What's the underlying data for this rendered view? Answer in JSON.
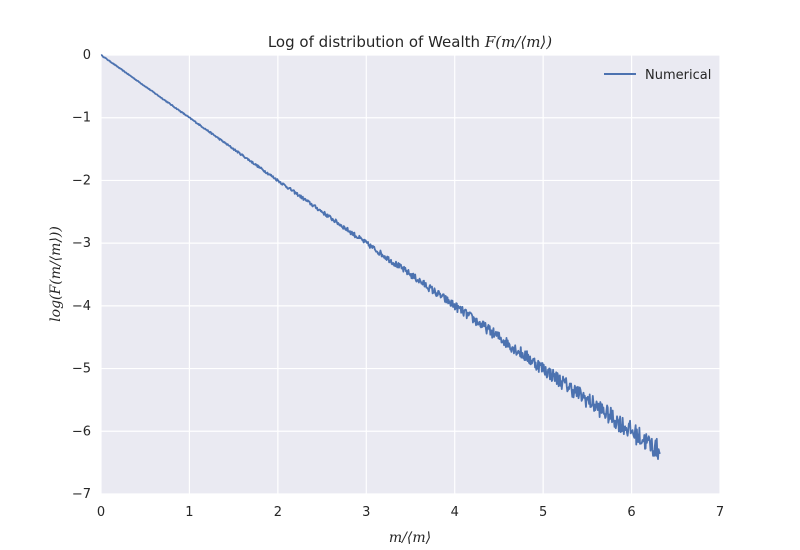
{
  "chart_data": {
    "type": "line",
    "title": "Log of distribution of Wealth F(m/⟨m⟩)",
    "title_text": "Log of distribution of Wealth ",
    "title_math": "F(m/⟨m⟩)",
    "xlabel": "m/⟨m⟩",
    "ylabel": "log(F(m/⟨m⟩))",
    "xlim": [
      0,
      7
    ],
    "ylim": [
      -7,
      0
    ],
    "xticks": [
      0,
      1,
      2,
      3,
      4,
      5,
      6,
      7
    ],
    "yticks": [
      0,
      -1,
      -2,
      -3,
      -4,
      -5,
      -6,
      -7
    ],
    "xtick_labels": [
      "0",
      "1",
      "2",
      "3",
      "4",
      "5",
      "6",
      "7"
    ],
    "ytick_labels": [
      "0",
      "−1",
      "−2",
      "−3",
      "−4",
      "−5",
      "−6",
      "−7"
    ],
    "grid": true,
    "legend_position": "top-right",
    "series": [
      {
        "name": "Numerical",
        "color": "#4c72b0",
        "trend": {
          "x_start": 0.0,
          "x_end": 6.32,
          "slope": -1.0,
          "intercept": 0.0
        },
        "x": [
          0.0,
          0.5,
          1.0,
          1.5,
          2.0,
          2.5,
          3.0,
          3.5,
          4.0,
          4.5,
          5.0,
          5.5,
          6.0,
          6.32
        ],
        "y": [
          0.0,
          -0.5,
          -1.0,
          -1.5,
          -2.0,
          -2.5,
          -3.0,
          -3.5,
          -4.0,
          -4.5,
          -5.0,
          -5.5,
          -6.0,
          -6.3
        ]
      }
    ]
  }
}
